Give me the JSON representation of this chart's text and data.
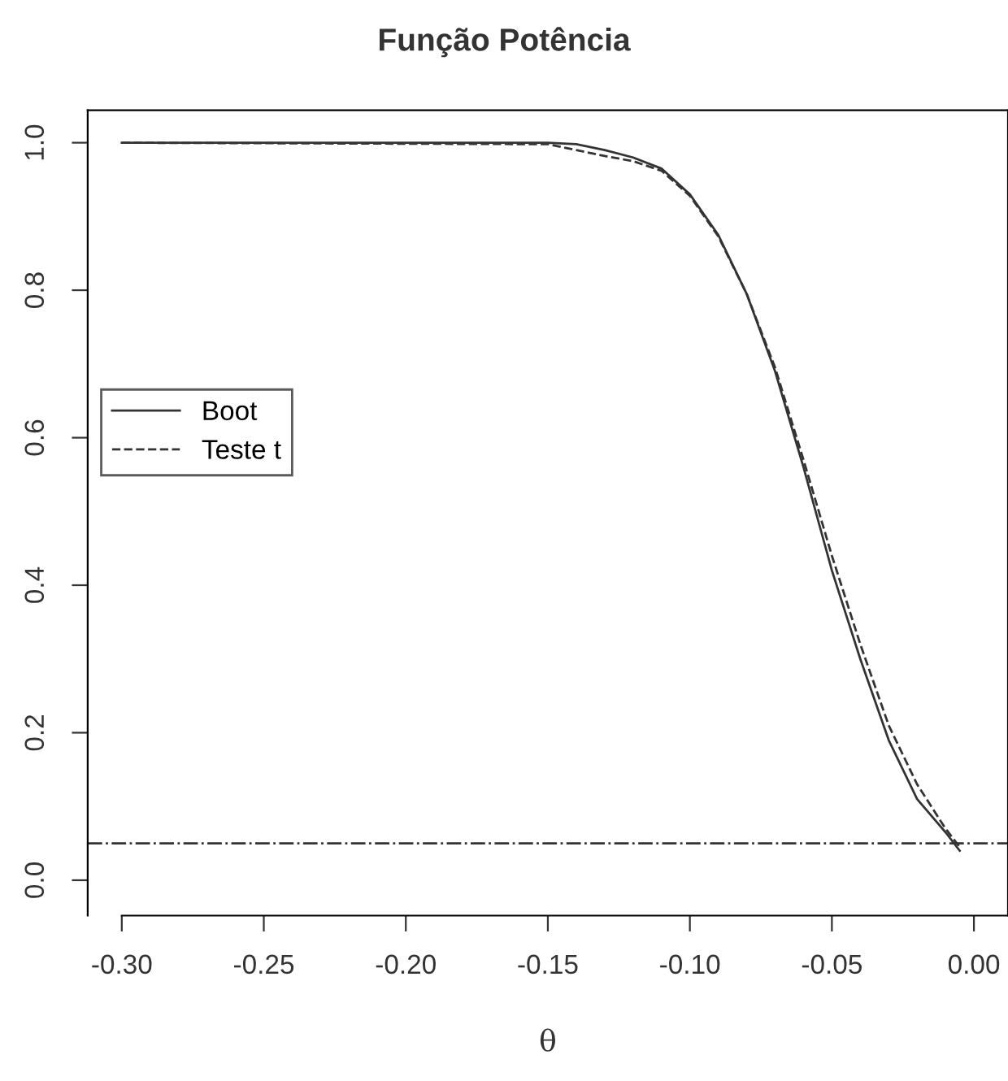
{
  "chart_data": {
    "type": "line",
    "title": "Função Potência",
    "xlabel": "θ",
    "xlim": [
      -0.312,
      0.012
    ],
    "ylim": [
      -0.048,
      1.044
    ],
    "xticks": [
      {
        "value": -0.3,
        "label": "-0.30"
      },
      {
        "value": -0.25,
        "label": "-0.25"
      },
      {
        "value": -0.2,
        "label": "-0.20"
      },
      {
        "value": -0.15,
        "label": "-0.15"
      },
      {
        "value": -0.1,
        "label": "-0.10"
      },
      {
        "value": -0.05,
        "label": "-0.05"
      },
      {
        "value": 0,
        "label": "0.00"
      }
    ],
    "yticks": [
      {
        "value": 0,
        "label": "0.0"
      },
      {
        "value": 0.2,
        "label": "0.2"
      },
      {
        "value": 0.4,
        "label": "0.4"
      },
      {
        "value": 0.6,
        "label": "0.6"
      },
      {
        "value": 0.8,
        "label": "0.8"
      },
      {
        "value": 1,
        "label": "1.0"
      }
    ],
    "x": [
      -0.3,
      -0.15,
      -0.14,
      -0.13,
      -0.12,
      -0.11,
      -0.1,
      -0.09,
      -0.08,
      -0.07,
      -0.06,
      -0.05,
      -0.04,
      -0.03,
      -0.02,
      -0.01,
      -0.005
    ],
    "series": [
      {
        "name": "Boot",
        "color": "#333333",
        "line_style": "solid",
        "values": [
          1.0,
          1.0,
          0.998,
          0.99,
          0.98,
          0.965,
          0.93,
          0.875,
          0.795,
          0.69,
          0.56,
          0.42,
          0.3,
          0.19,
          0.11,
          0.065,
          0.04
        ]
      },
      {
        "name": "Teste t",
        "color": "#333333",
        "line_style": "dashed",
        "values": [
          1.0,
          0.998,
          0.99,
          0.982,
          0.975,
          0.962,
          0.928,
          0.873,
          0.795,
          0.695,
          0.57,
          0.44,
          0.32,
          0.21,
          0.13,
          0.07,
          0.045
        ]
      }
    ],
    "ref_lines": [
      {
        "axis": "y",
        "value": 0.05,
        "color": "#333333",
        "line_style": "dashdot"
      }
    ],
    "legend": "left",
    "grid": false,
    "marker": "none"
  }
}
